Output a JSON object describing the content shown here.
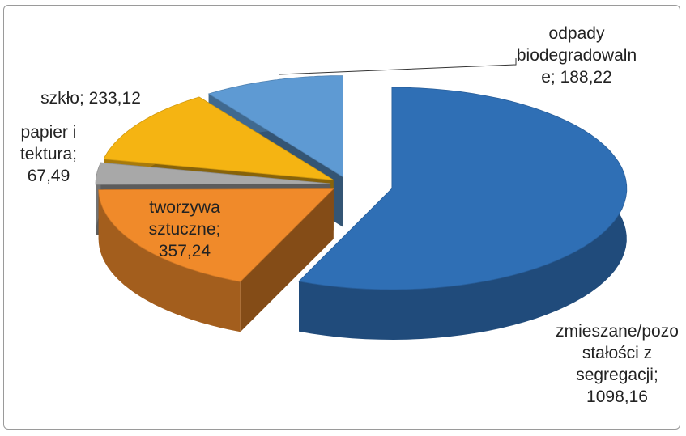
{
  "chart_data": {
    "type": "pie3d",
    "categories": [
      "zmieszane/pozostałości z segregacji",
      "tworzywa sztuczne",
      "papier i tektura",
      "szkło",
      "odpady biodegradowalne"
    ],
    "values": [
      1098.16,
      357.24,
      67.49,
      233.12,
      188.22
    ],
    "value_labels": [
      "1098,16",
      "357,24",
      "67,49",
      "233,12",
      "188,22"
    ],
    "label_separator": "; ",
    "colors": [
      "#2f6fb5",
      "#f08a2a",
      "#a8a8a8",
      "#f5b412",
      "#5e9ad3"
    ]
  }
}
